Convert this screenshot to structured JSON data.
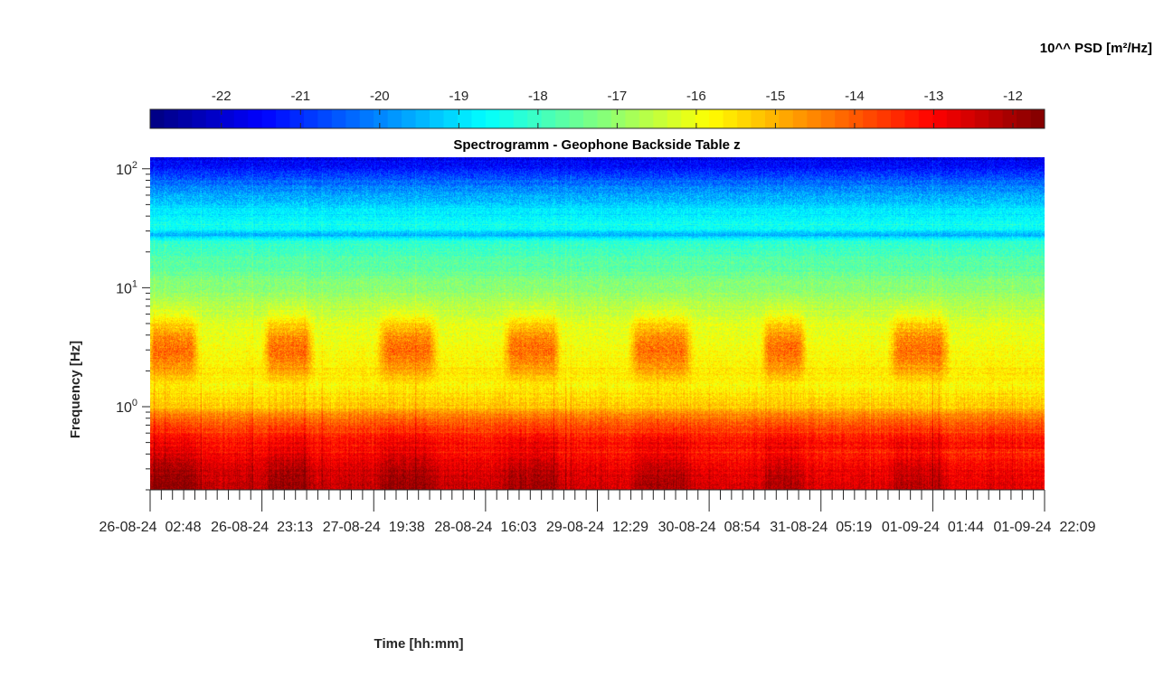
{
  "chart_data": {
    "type": "heatmap",
    "title": "Spectrogramm - Geophone Backside Table z",
    "xlabel": "Time [hh:mm]",
    "ylabel": "Frequency [Hz]",
    "colorbar_label": "10^^ PSD [m²/Hz]",
    "colorbar_ticks": [
      -22,
      -21,
      -20,
      -19,
      -18,
      -17,
      -16,
      -15,
      -14,
      -13,
      -12
    ],
    "colorbar_range": [
      -22.9,
      -11.6
    ],
    "colormap": "jet",
    "y_scale": "log",
    "y_range": [
      0.2,
      125
    ],
    "y_ticks": [
      {
        "value": 1,
        "base": "10",
        "exp": "0"
      },
      {
        "value": 10,
        "base": "10",
        "exp": "1"
      },
      {
        "value": 100,
        "base": "10",
        "exp": "2"
      }
    ],
    "x_ticks": [
      "26-08-24  02:48",
      "26-08-24  23:13",
      "27-08-24  19:38",
      "28-08-24  16:03",
      "29-08-24  12:29",
      "30-08-24  08:54",
      "31-08-24  05:19",
      "01-09-24  01:44",
      "01-09-24  22:09"
    ],
    "grid": false,
    "colorbar_position": "top",
    "background_levels": [
      {
        "freq": 0.2,
        "psd": -12.2
      },
      {
        "freq": 0.3,
        "psd": -12.5
      },
      {
        "freq": 0.5,
        "psd": -13.1
      },
      {
        "freq": 0.8,
        "psd": -14.2
      },
      {
        "freq": 1.0,
        "psd": -15.2
      },
      {
        "freq": 1.5,
        "psd": -15.8
      },
      {
        "freq": 2.0,
        "psd": -15.6
      },
      {
        "freq": 3.0,
        "psd": -15.9
      },
      {
        "freq": 5.0,
        "psd": -16.2
      },
      {
        "freq": 8.0,
        "psd": -16.8
      },
      {
        "freq": 10.0,
        "psd": -17.1
      },
      {
        "freq": 15.0,
        "psd": -17.6
      },
      {
        "freq": 20.0,
        "psd": -17.9
      },
      {
        "freq": 25.0,
        "psd": -18.2
      },
      {
        "freq": 28.0,
        "psd": -19.6
      },
      {
        "freq": 32.0,
        "psd": -18.5
      },
      {
        "freq": 45.0,
        "psd": -18.9
      },
      {
        "freq": 60.0,
        "psd": -19.6
      },
      {
        "freq": 80.0,
        "psd": -20.4
      },
      {
        "freq": 100.0,
        "psd": -21.2
      },
      {
        "freq": 125.0,
        "psd": -21.8
      }
    ],
    "daily_activity": {
      "freq_range": [
        1.0,
        6.0
      ],
      "peak_freq": 3.2,
      "peak_psd": -13.8,
      "periods": [
        {
          "start": "26-08-24  02:48",
          "end": "26-08-24  11:00"
        },
        {
          "start": "27-08-24  00:00",
          "end": "27-08-24  08:00"
        },
        {
          "start": "27-08-24  21:00",
          "end": "28-08-24  06:30"
        },
        {
          "start": "28-08-24  20:00",
          "end": "29-08-24  05:00"
        },
        {
          "start": "29-08-24  19:00",
          "end": "30-08-24  05:00"
        },
        {
          "start": "30-08-24  19:00",
          "end": "31-08-24  02:00"
        },
        {
          "start": "31-08-24  18:30",
          "end": "01-09-24  04:00"
        }
      ]
    }
  }
}
